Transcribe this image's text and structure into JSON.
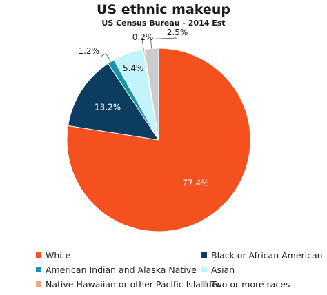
{
  "chart_data": {
    "type": "pie",
    "title": "US ethnic makeup",
    "subtitle": "US Census Bureau - 2014 Est",
    "legend_position": "bottom",
    "slices": [
      {
        "name": "White",
        "value": 77.4,
        "label": "77.4%",
        "color": "#f4511e"
      },
      {
        "name": "Black or African American",
        "value": 13.2,
        "label": "13.2%",
        "color": "#0d3c61"
      },
      {
        "name": "American Indian and Alaska Native",
        "value": 1.2,
        "label": "1.2%",
        "color": "#1596a8"
      },
      {
        "name": "Asian",
        "value": 5.4,
        "label": "5.4%",
        "color": "#c4f4fb"
      },
      {
        "name": "Native Hawaiian or other Pacific Islander",
        "value": 0.2,
        "label": "0.2%",
        "color": "#f4a582"
      },
      {
        "name": "Two or more races",
        "value": 2.5,
        "label": "2.5%",
        "color": "#cccccc"
      }
    ]
  }
}
